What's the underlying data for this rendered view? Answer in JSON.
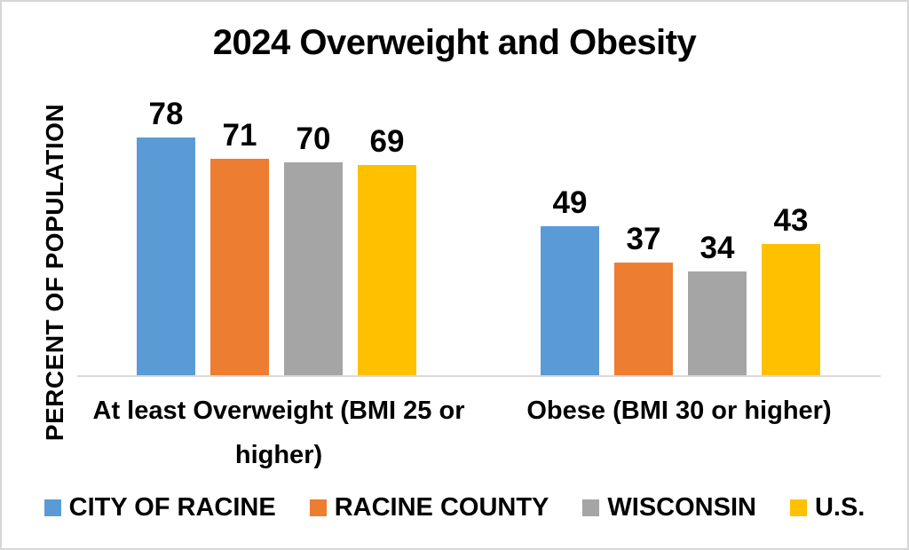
{
  "chart_data": {
    "type": "bar",
    "title": "2024 Overweight and Obesity",
    "xlabel": "",
    "ylabel": "PERCENT OF POPULATION",
    "categories": [
      "At least Overweight (BMI 25 or higher)",
      "Obese (BMI 30 or higher)"
    ],
    "series": [
      {
        "name": "CITY OF RACINE",
        "color": "#5B9BD5",
        "values": [
          78,
          49
        ]
      },
      {
        "name": "RACINE COUNTY",
        "color": "#ED7D31",
        "values": [
          71,
          37
        ]
      },
      {
        "name": "WISCONSIN",
        "color": "#A5A5A5",
        "values": [
          70,
          34
        ]
      },
      {
        "name": "U.S.",
        "color": "#FFC000",
        "values": [
          69,
          43
        ]
      }
    ],
    "ylim": [
      0,
      90
    ],
    "grid": false,
    "data_labels": true,
    "legend_position": "bottom",
    "axis_line_color": "#D9D9D9",
    "text_color": "#000000",
    "background_color": "#FFFFFF"
  }
}
